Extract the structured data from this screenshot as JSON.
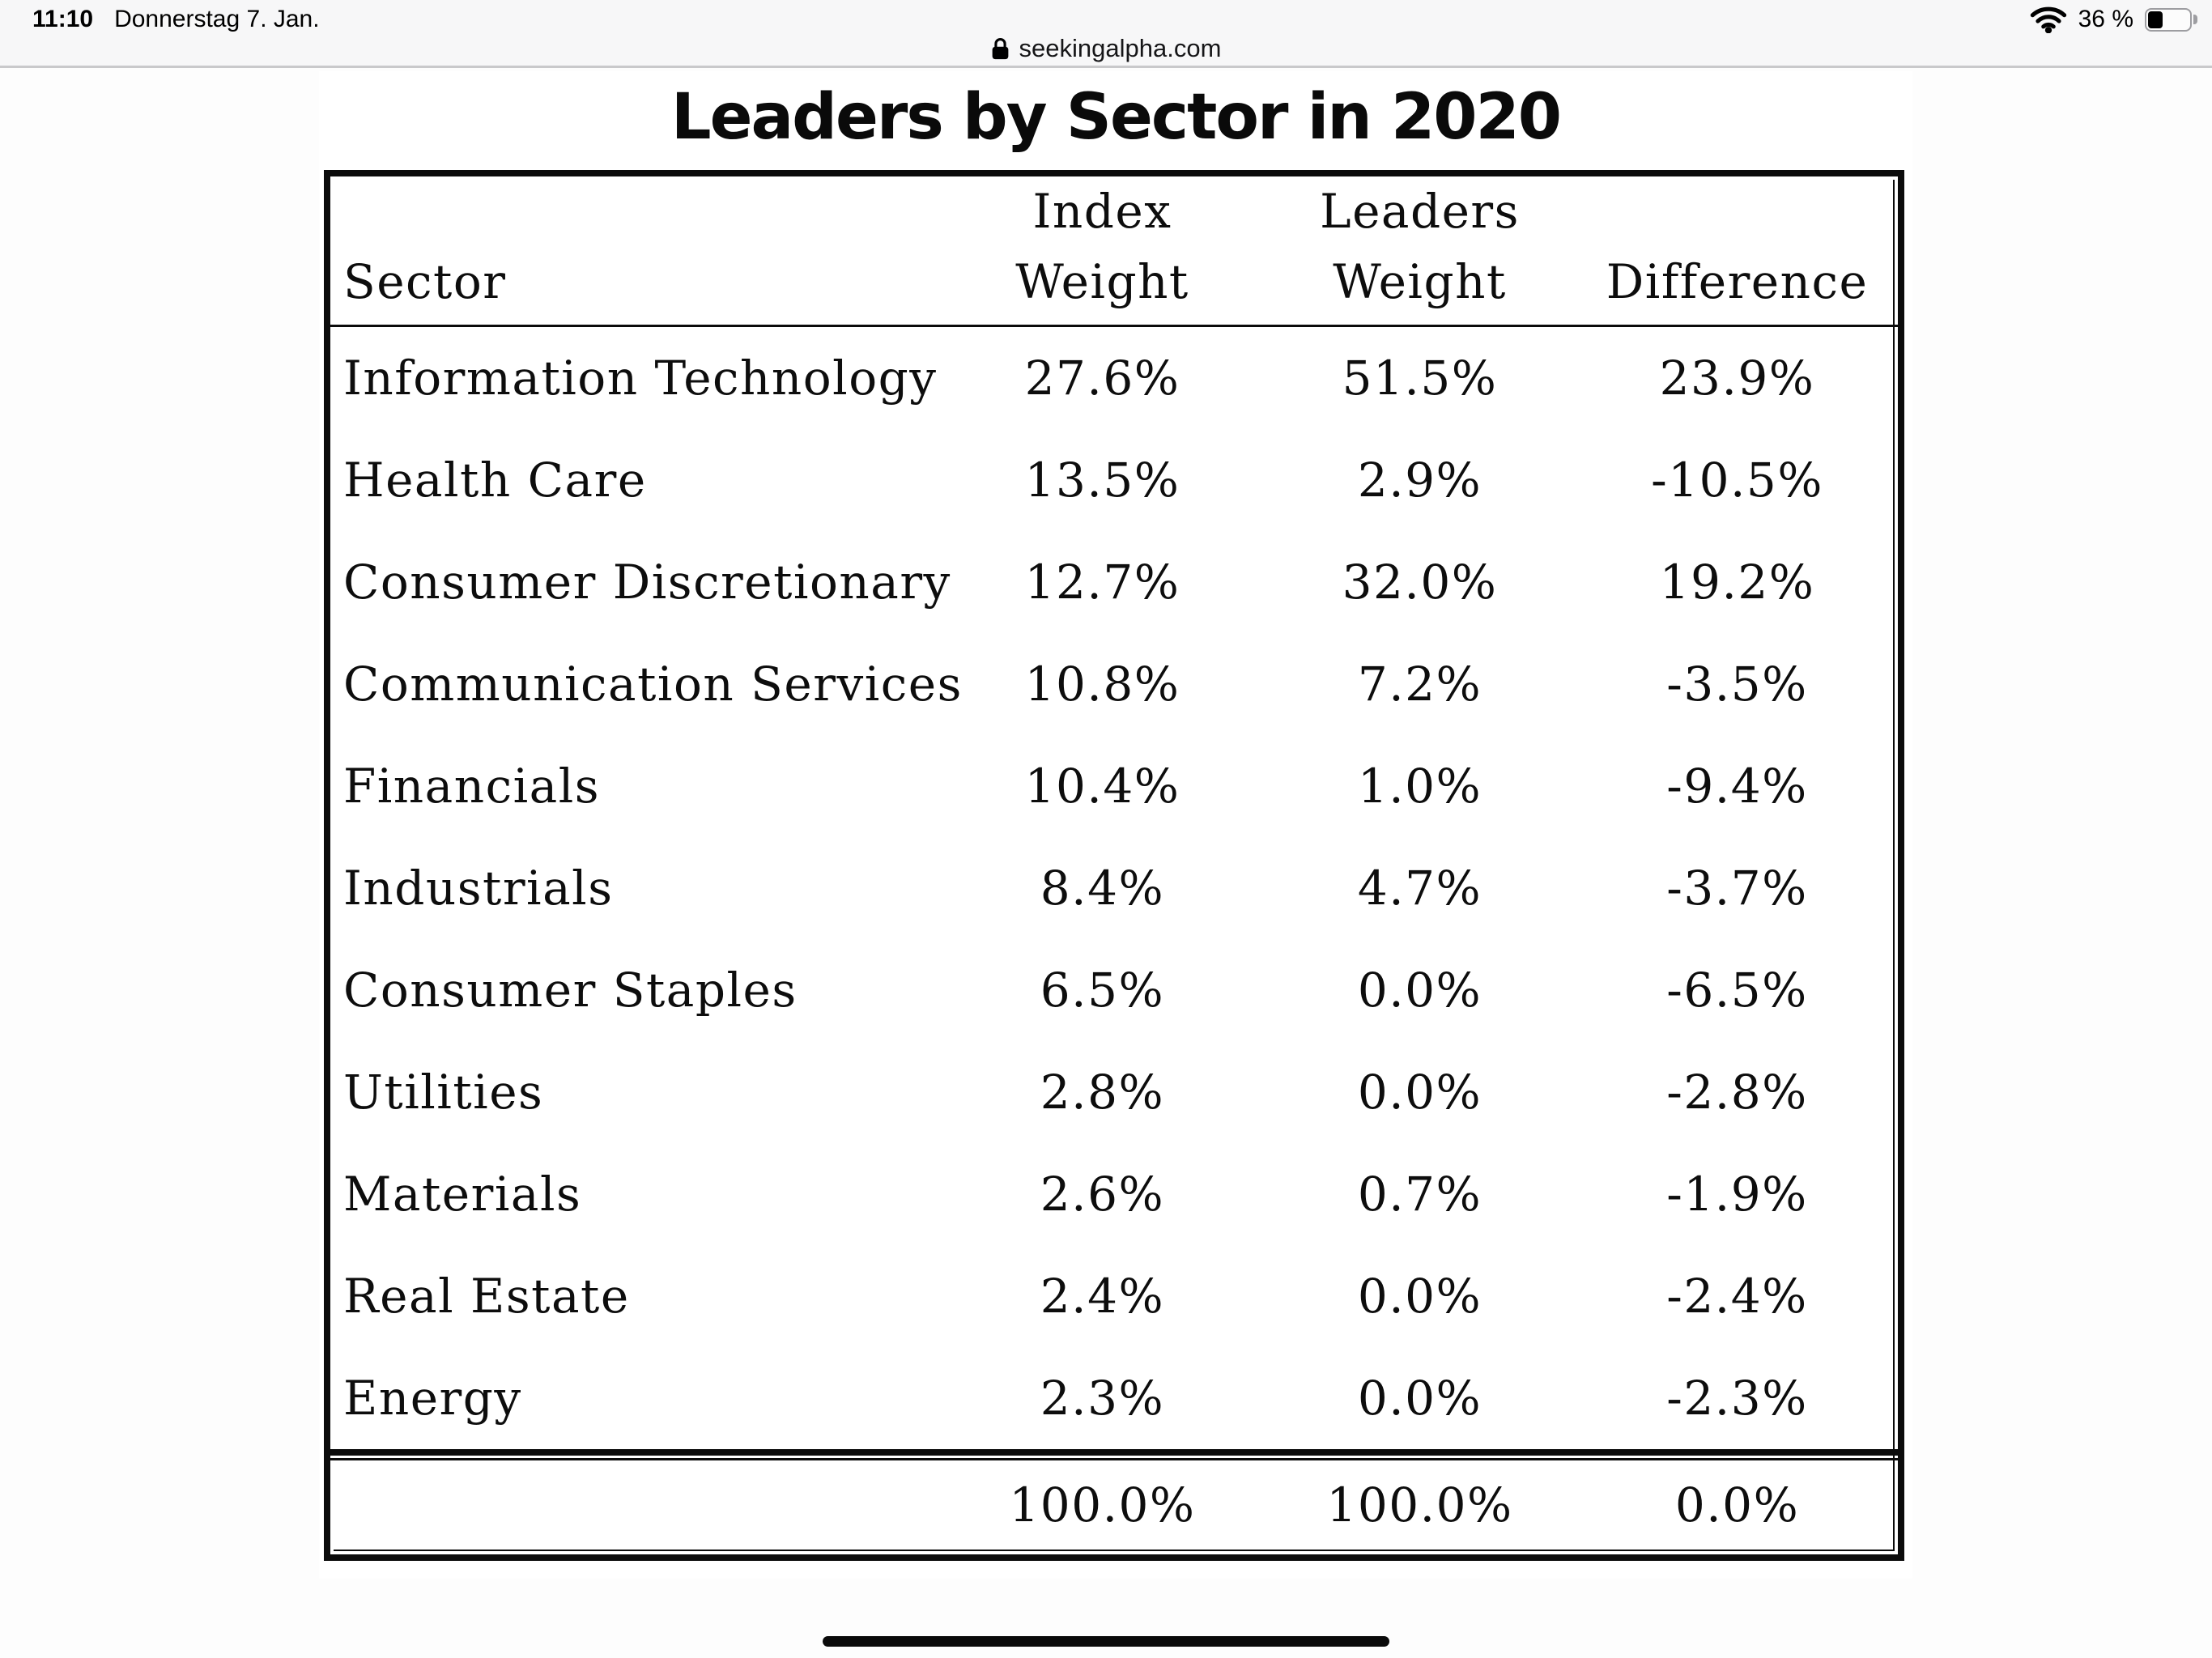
{
  "status_bar": {
    "time": "11:10",
    "date": "Donnerstag 7. Jan.",
    "battery_percent": "36 %",
    "battery_level": 0.36
  },
  "url_bar": {
    "url": "seekingalpha.com"
  },
  "page": {
    "title": "Leaders by Sector in 2020",
    "table": {
      "headers": {
        "sector": "Sector",
        "index_weight": "Index\nWeight",
        "leaders_weight": "Leaders\nWeight",
        "difference": "Difference"
      },
      "rows": [
        {
          "sector": "Information Technology",
          "index": "27.6%",
          "leaders": "51.5%",
          "difference": "23.9%"
        },
        {
          "sector": "Health Care",
          "index": "13.5%",
          "leaders": "2.9%",
          "difference": "-10.5%"
        },
        {
          "sector": "Consumer Discretionary",
          "index": "12.7%",
          "leaders": "32.0%",
          "difference": "19.2%"
        },
        {
          "sector": "Communication Services",
          "index": "10.8%",
          "leaders": "7.2%",
          "difference": "-3.5%"
        },
        {
          "sector": "Financials",
          "index": "10.4%",
          "leaders": "1.0%",
          "difference": "-9.4%"
        },
        {
          "sector": "Industrials",
          "index": "8.4%",
          "leaders": "4.7%",
          "difference": "-3.7%"
        },
        {
          "sector": "Consumer Staples",
          "index": "6.5%",
          "leaders": "0.0%",
          "difference": "-6.5%"
        },
        {
          "sector": "Utilities",
          "index": "2.8%",
          "leaders": "0.0%",
          "difference": "-2.8%"
        },
        {
          "sector": "Materials",
          "index": "2.6%",
          "leaders": "0.7%",
          "difference": "-1.9%"
        },
        {
          "sector": "Real Estate",
          "index": "2.4%",
          "leaders": "0.0%",
          "difference": "-2.4%"
        },
        {
          "sector": "Energy",
          "index": "2.3%",
          "leaders": "0.0%",
          "difference": "-2.3%"
        }
      ],
      "total": {
        "sector": "",
        "index": "100.0%",
        "leaders": "100.0%",
        "difference": "0.0%"
      }
    }
  },
  "colors": {
    "chrome_bg": "#f7f7f8",
    "table_border": "#0b0b0b",
    "text": "#0d0d0d"
  }
}
